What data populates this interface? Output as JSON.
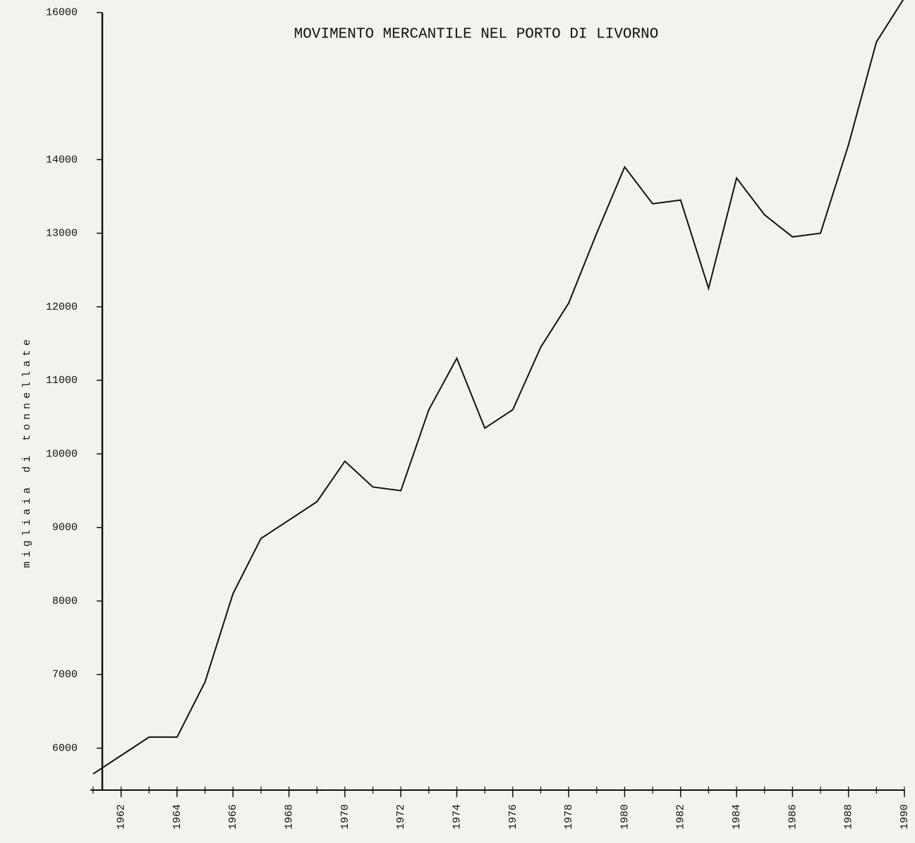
{
  "chart_data": {
    "type": "line",
    "title": "MOVIMENTO MERCANTILE NEL PORTO DI LIVORNO",
    "y_label": "migliaia di tonnellate",
    "x": [
      1961,
      1962,
      1963,
      1964,
      1965,
      1966,
      1967,
      1968,
      1969,
      1970,
      1971,
      1972,
      1973,
      1974,
      1975,
      1976,
      1977,
      1978,
      1979,
      1980,
      1981,
      1982,
      1983,
      1984,
      1985,
      1986,
      1987,
      1988,
      1989,
      1990
    ],
    "series": [
      {
        "name": "movimento mercantile",
        "color": "#111111",
        "values": [
          5650,
          5900,
          6150,
          6150,
          6900,
          8100,
          8850,
          9100,
          9350,
          9900,
          9550,
          9500,
          10600,
          11300,
          10350,
          10600,
          11450,
          12050,
          13000,
          13900,
          13400,
          13450,
          12250,
          13750,
          13250,
          12950,
          13000,
          14200,
          15600,
          16200
        ]
      }
    ],
    "xlim": [
      1961,
      1990
    ],
    "xticks": [
      1962,
      1964,
      1966,
      1968,
      1970,
      1972,
      1974,
      1976,
      1978,
      1980,
      1982,
      1984,
      1986,
      1988,
      1990
    ],
    "ylim": [
      5430,
      16170
    ],
    "yticks": [
      6000,
      7000,
      8000,
      9000,
      10000,
      11000,
      12000,
      13000,
      14000,
      16000
    ],
    "grid": false
  }
}
